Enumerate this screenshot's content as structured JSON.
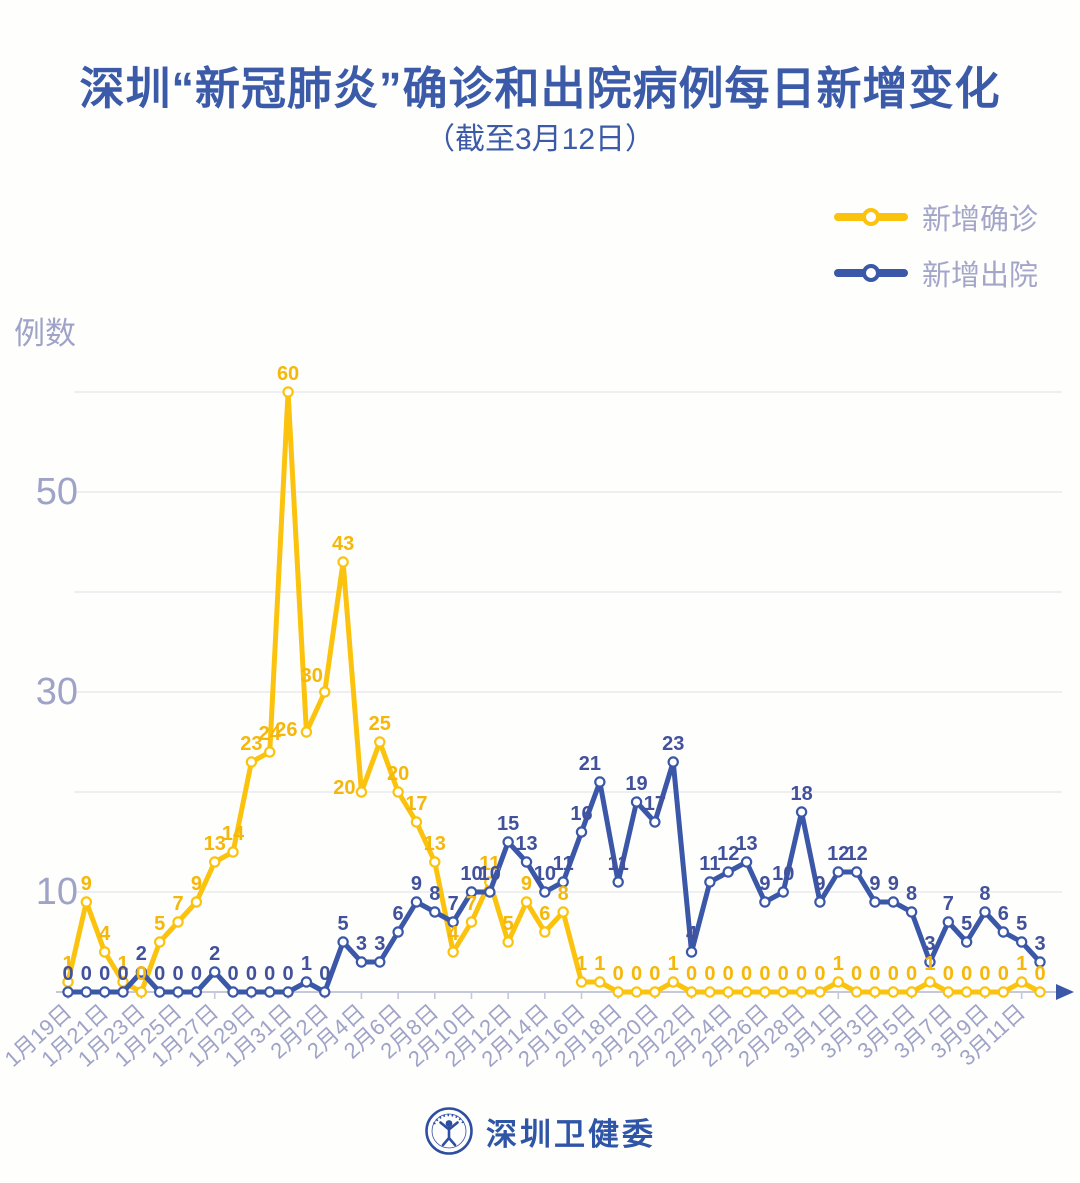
{
  "title": "深圳“新冠肺炎”确诊和出院病例每日新增变化",
  "subtitle": "（截至3月12日）",
  "y_axis_label": "例数",
  "legend": [
    {
      "label": "新增确诊",
      "color": "#fbc30d"
    },
    {
      "label": "新增出院",
      "color": "#3a57a8"
    }
  ],
  "footer": {
    "org": "深圳卫健委"
  },
  "colors": {
    "title_blue": "#3b5ba9",
    "line_yellow": "#fbc30d",
    "line_blue": "#3a57a8",
    "axis_text": "#9fa3c7",
    "gridline": "#eaeaef",
    "axis_line": "#c5c8db"
  },
  "chart_data": {
    "type": "line",
    "title": "深圳“新冠肺炎”确诊和出院病例每日新增变化",
    "subtitle": "（截至3月12日）",
    "ylabel": "例数",
    "ylim": [
      0,
      60
    ],
    "grid_interval": 10,
    "labeled_y_ticks": [
      10,
      30,
      50
    ],
    "legend_position": "top-right",
    "grid": true,
    "markers": "hollow-circle",
    "data_labels": true,
    "x": [
      "1月19日",
      "1月20日",
      "1月21日",
      "1月22日",
      "1月23日",
      "1月24日",
      "1月25日",
      "1月26日",
      "1月27日",
      "1月28日",
      "1月29日",
      "1月30日",
      "1月31日",
      "2月1日",
      "2月2日",
      "2月3日",
      "2月4日",
      "2月5日",
      "2月6日",
      "2月7日",
      "2月8日",
      "2月9日",
      "2月10日",
      "2月11日",
      "2月12日",
      "2月13日",
      "2月14日",
      "2月15日",
      "2月16日",
      "2月17日",
      "2月18日",
      "2月19日",
      "2月20日",
      "2月21日",
      "2月22日",
      "2月23日",
      "2月24日",
      "2月25日",
      "2月26日",
      "2月27日",
      "2月28日",
      "2月29日",
      "3月1日",
      "3月2日",
      "3月3日",
      "3月4日",
      "3月5日",
      "3月6日",
      "3月7日",
      "3月8日",
      "3月9日",
      "3月10日",
      "3月11日",
      "3月12日"
    ],
    "x_tick_labels": [
      "1月19日",
      "1月21日",
      "1月23日",
      "1月25日",
      "1月27日",
      "1月29日",
      "1月31日",
      "2月2日",
      "2月4日",
      "2月6日",
      "2月8日",
      "2月10日",
      "2月12日",
      "2月14日",
      "2月16日",
      "2月18日",
      "2月20日",
      "2月22日",
      "2月24日",
      "2月26日",
      "2月28日",
      "3月1日",
      "3月3日",
      "3月5日",
      "3月7日",
      "3月9日",
      "3月11日"
    ],
    "series": [
      {
        "name": "新增确诊",
        "color": "#fbc30d",
        "label_color": "#f5b70a",
        "values": [
          1,
          9,
          4,
          1,
          0,
          5,
          7,
          9,
          13,
          14,
          23,
          24,
          60,
          26,
          30,
          43,
          20,
          25,
          20,
          17,
          13,
          4,
          7,
          11,
          5,
          9,
          6,
          8,
          1,
          1,
          0,
          0,
          0,
          1,
          0,
          0,
          0,
          0,
          0,
          0,
          0,
          0,
          1,
          0,
          0,
          0,
          0,
          1,
          0,
          0,
          0,
          0,
          1,
          0
        ]
      },
      {
        "name": "新增出院",
        "color": "#3a57a8",
        "label_color": "#42519b",
        "values": [
          0,
          0,
          0,
          0,
          2,
          0,
          0,
          0,
          2,
          0,
          0,
          0,
          0,
          1,
          0,
          5,
          3,
          3,
          6,
          9,
          8,
          7,
          10,
          10,
          15,
          13,
          10,
          11,
          16,
          21,
          11,
          19,
          17,
          23,
          4,
          11,
          12,
          13,
          9,
          10,
          18,
          9,
          12,
          12,
          9,
          9,
          8,
          3,
          7,
          5,
          8,
          6,
          5,
          3
        ]
      }
    ]
  }
}
